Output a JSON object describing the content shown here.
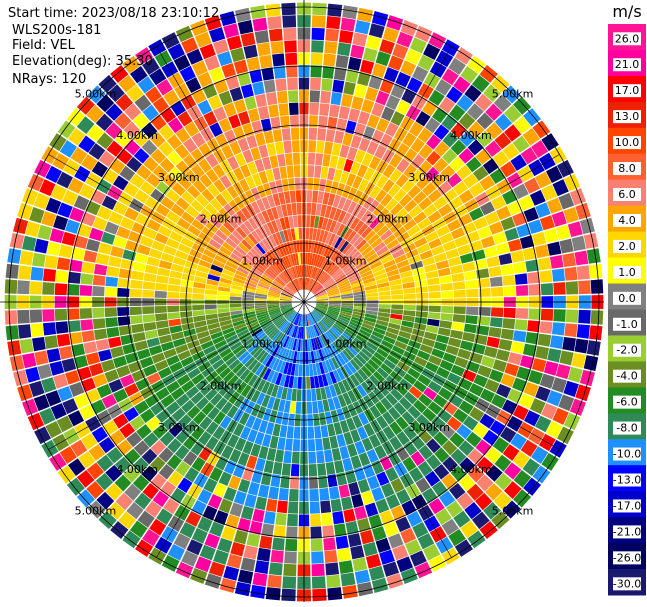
{
  "header": {
    "start_time": "Start time: 2023/08/18 23:10:12",
    "instrument": "WLS200s-181",
    "field": "Field: VEL",
    "elevation": "Elevation(deg): 35.30",
    "nrays": "NRays: 120"
  },
  "chart_data": {
    "type": "ppi",
    "field": "VEL",
    "units": "m/s",
    "n_rays": 120,
    "range_rings_km": [
      1.0,
      2.0,
      3.0,
      4.0,
      5.0
    ],
    "ring_labels": [
      "1.00km",
      "2.00km",
      "3.00km",
      "4.00km",
      "5.00km"
    ],
    "spokes_deg": [
      0,
      30,
      60,
      90,
      120,
      150,
      180,
      210,
      240,
      270,
      300,
      330
    ],
    "colorbar": {
      "title": "m/s",
      "ticks": [
        "26.0",
        "21.0",
        "17.0",
        "13.0",
        "10.0",
        "8.0",
        "6.0",
        "4.0",
        "2.0",
        "1.0",
        "0.0",
        "-1.0",
        "-2.0",
        "-4.0",
        "-6.0",
        "-8.0",
        "-10.0",
        "-13.0",
        "-17.0",
        "-21.0",
        "-26.0",
        "-30.0"
      ],
      "colors": [
        "#ff1493",
        "#ff00a0",
        "#ff0000",
        "#ee2000",
        "#ff4500",
        "#ff6030",
        "#fa8072",
        "#ffa500",
        "#ffd700",
        "#ffff00",
        "#808080",
        "#696969",
        "#9acd32",
        "#6b8e23",
        "#228b22",
        "#2e8b57",
        "#1e90ff",
        "#0000ff",
        "#0000cd",
        "#000080",
        "#000060",
        "#191970"
      ]
    },
    "summary": {
      "north_half": "positive (receding) velocities 2-13 m/s, orange/salmon near radar, yellow at mid range",
      "south_half": "negative (approaching) velocities -2 to -10 m/s, green and blue",
      "far_range": "noisy mixed colours beyond ~4 km"
    }
  }
}
